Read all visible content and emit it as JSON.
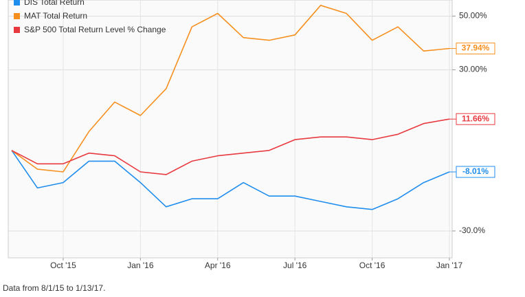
{
  "chart_data": {
    "type": "line",
    "x": [
      "2015-08",
      "2015-09",
      "2015-10",
      "2015-11",
      "2015-12",
      "2016-01",
      "2016-02",
      "2016-03",
      "2016-04",
      "2016-05",
      "2016-06",
      "2016-07",
      "2016-08",
      "2016-09",
      "2016-10",
      "2016-11",
      "2016-12",
      "2017-01"
    ],
    "xlim": [
      "2015-08",
      "2017-01"
    ],
    "xticks": [
      {
        "value": "2015-10",
        "label": "Oct '15"
      },
      {
        "value": "2016-01",
        "label": "Jan '16"
      },
      {
        "value": "2016-04",
        "label": "Apr '16"
      },
      {
        "value": "2016-07",
        "label": "Jul '16"
      },
      {
        "value": "2016-10",
        "label": "Oct '16"
      },
      {
        "value": "2017-01",
        "label": "Jan '17"
      }
    ],
    "ylim": [
      -40,
      56
    ],
    "yticks": [
      {
        "value": -30,
        "label": "-30.0%"
      },
      {
        "value": 30,
        "label": "30.00%"
      },
      {
        "value": 50,
        "label": "50.00%"
      }
    ],
    "grid": true,
    "legend": "top-left",
    "series": [
      {
        "name": "DIS Total Return",
        "color": "#1f8ded",
        "values": [
          0,
          -14,
          -12,
          -4,
          -4,
          -12,
          -21,
          -18,
          -18,
          -12,
          -17,
          -17,
          -19,
          -21,
          -22,
          -18,
          -12,
          -8.01
        ],
        "value_labels": [
          null,
          null,
          null,
          null,
          null,
          null,
          null,
          null,
          null,
          null,
          null,
          null,
          null,
          null,
          null,
          null,
          null,
          "-8.01%"
        ]
      },
      {
        "name": "MAT Total Return",
        "color": "#f68f1e",
        "values": [
          0,
          -7,
          -8,
          7,
          18,
          13,
          23,
          46,
          51,
          42,
          41,
          43,
          54,
          51,
          41,
          46,
          37,
          37.94
        ],
        "value_labels": [
          null,
          null,
          null,
          null,
          null,
          null,
          null,
          null,
          null,
          null,
          null,
          null,
          null,
          null,
          null,
          null,
          null,
          "37.94%"
        ]
      },
      {
        "name": "S&P 500 Total Return Level % Change",
        "color": "#e8393f",
        "values": [
          0,
          -5,
          -5,
          -1,
          -2,
          -8,
          -9,
          -4,
          -2,
          -1,
          0,
          4,
          5,
          5,
          4,
          6,
          10,
          11.66
        ],
        "value_labels": [
          null,
          null,
          null,
          null,
          null,
          null,
          null,
          null,
          null,
          null,
          null,
          null,
          null,
          null,
          null,
          null,
          null,
          "11.66%"
        ]
      }
    ],
    "footnote": "Data from 8/1/15 to 1/13/17."
  }
}
